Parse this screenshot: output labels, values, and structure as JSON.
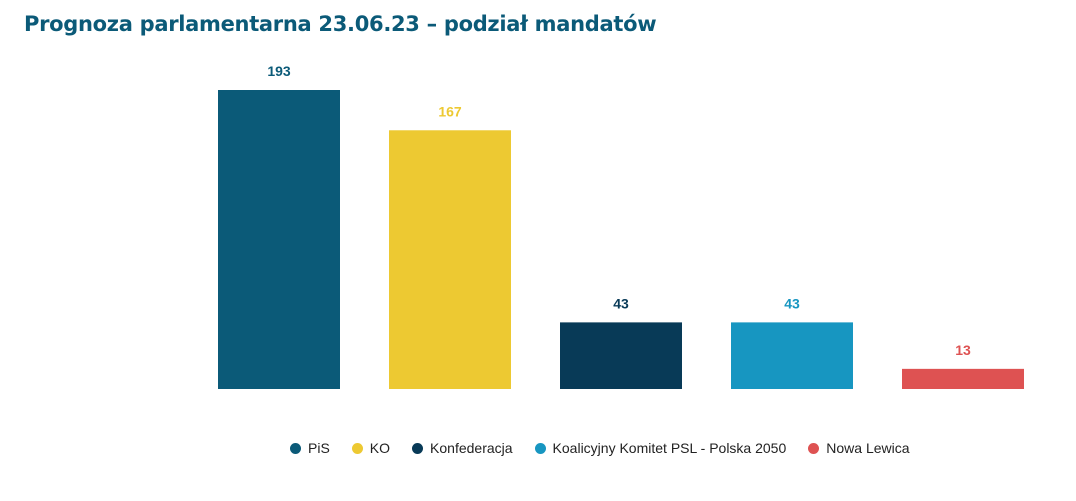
{
  "chart_data": {
    "type": "bar",
    "title": "Prognoza parlamentarna 23.06.23 – podział mandatów",
    "categories": [
      "PiS",
      "KO",
      "Konfederacja",
      "Koalicyjny Komitet PSL - Polska 2050",
      "Nowa Lewica"
    ],
    "values": [
      193,
      167,
      43,
      43,
      13
    ],
    "colors": [
      "#0b5a78",
      "#edc932",
      "#083a57",
      "#1796c1",
      "#de5252"
    ],
    "label_colors": [
      "#0b5a78",
      "#edc932",
      "#083a57",
      "#1796c1",
      "#de5252"
    ],
    "ylim": [
      0,
      200
    ],
    "grid": false,
    "legend": "bottom"
  }
}
